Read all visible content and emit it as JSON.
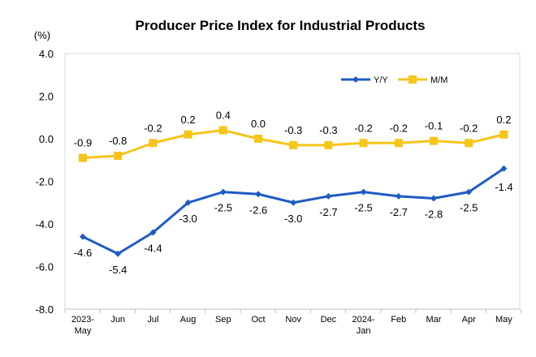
{
  "chart_data": {
    "type": "line",
    "title": "Producer Price Index for Industrial Products",
    "ylabel": "(%)",
    "xlabel": "",
    "ylim": [
      -8.0,
      4.0
    ],
    "yticks": [
      "4.0",
      "2.0",
      "0.0",
      "-2.0",
      "-4.0",
      "-6.0",
      "-8.0"
    ],
    "ytick_values": [
      4,
      2,
      0,
      -2,
      -4,
      -6,
      -8
    ],
    "grid": false,
    "legend_position": "top-right",
    "categories": [
      [
        "2023-",
        "May"
      ],
      [
        "Jun"
      ],
      [
        "Jul"
      ],
      [
        "Aug"
      ],
      [
        "Sep"
      ],
      [
        "Oct"
      ],
      [
        "Nov"
      ],
      [
        "Dec"
      ],
      [
        "2024-",
        "Jan"
      ],
      [
        "Feb"
      ],
      [
        "Mar"
      ],
      [
        "Apr"
      ],
      [
        "May"
      ]
    ],
    "series": [
      {
        "name": "Y/Y",
        "color": "#1f5bc4",
        "marker": "diamond",
        "values": [
          -4.6,
          -5.4,
          -4.4,
          -3.0,
          -2.5,
          -2.6,
          -3.0,
          -2.7,
          -2.5,
          -2.7,
          -2.8,
          -2.5,
          -1.4
        ],
        "labels": [
          "-4.6",
          "-5.4",
          "-4.4",
          "-3.0",
          "-2.5",
          "-2.6",
          "-3.0",
          "-2.7",
          "-2.5",
          "-2.7",
          "-2.8",
          "-2.5",
          "-1.4"
        ]
      },
      {
        "name": "M/M",
        "color": "#f5c518",
        "marker": "square",
        "values": [
          -0.9,
          -0.8,
          -0.2,
          0.2,
          0.4,
          0.0,
          -0.3,
          -0.3,
          -0.2,
          -0.2,
          -0.1,
          -0.2,
          0.2
        ],
        "labels": [
          "-0.9",
          "-0.8",
          "-0.2",
          "0.2",
          "0.4",
          "0.0",
          "-0.3",
          "-0.3",
          "-0.2",
          "-0.2",
          "-0.1",
          "-0.2",
          "0.2"
        ]
      }
    ]
  }
}
